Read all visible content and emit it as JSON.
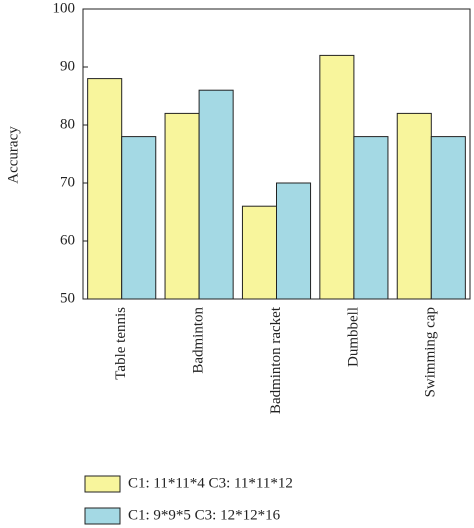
{
  "chart_data": {
    "type": "bar",
    "y_label": "Accuracy",
    "categories": [
      "Table tennis",
      "Badminton",
      "Badminton racket",
      "Dumbbell",
      "Swimming cap"
    ],
    "series": [
      {
        "name": "C1: 11*11*4 C3: 11*11*12",
        "color": "#f8f59c",
        "values": [
          88,
          82,
          66,
          92,
          82
        ]
      },
      {
        "name": "C1: 9*9*5 C3: 12*12*16",
        "color": "#a4d9e4",
        "values": [
          78,
          86,
          70,
          78,
          78
        ]
      }
    ],
    "ylim": [
      50,
      100
    ],
    "yticks": [
      50,
      60,
      70,
      80,
      90,
      100
    ],
    "grid": false
  }
}
